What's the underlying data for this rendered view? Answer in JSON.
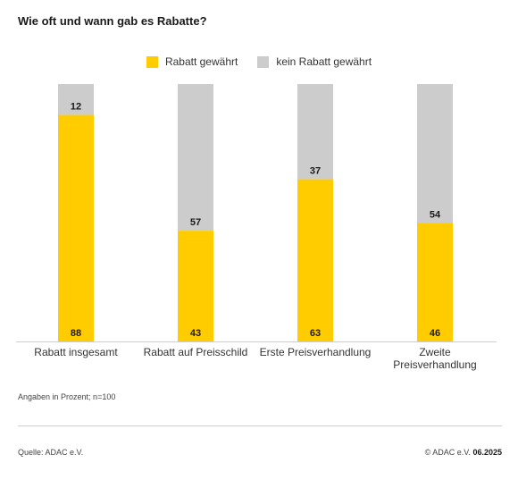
{
  "title": "Wie oft und wann gab es Rabatte?",
  "legend": {
    "rabatt": "Rabatt gewährt",
    "kein": "kein Rabatt gewährt"
  },
  "colors": {
    "rabatt": "#ffcc00",
    "kein": "#cccccc",
    "axis": "#cfcfcf"
  },
  "note": "Angaben in Prozent; n=100",
  "footer": {
    "source": "Quelle: ADAC e.V.",
    "copyright": "© ADAC e.V.",
    "year": "06.2025"
  },
  "chart_data": {
    "type": "bar",
    "stacked": true,
    "title": "Wie oft und wann gab es Rabatte?",
    "categories": [
      [
        "Rabatt insgesamt"
      ],
      [
        "Rabatt auf Preisschild"
      ],
      [
        "Erste Preisverhandlung"
      ],
      [
        "Zweite",
        "Preisverhandlung"
      ]
    ],
    "series": [
      {
        "name": "Rabatt gewährt",
        "values": [
          88,
          43,
          63,
          46
        ]
      },
      {
        "name": "kein Rabatt gewährt",
        "values": [
          12,
          57,
          37,
          54
        ]
      }
    ],
    "ylim": [
      0,
      100
    ],
    "grid": false,
    "legend_position": "top-center"
  }
}
